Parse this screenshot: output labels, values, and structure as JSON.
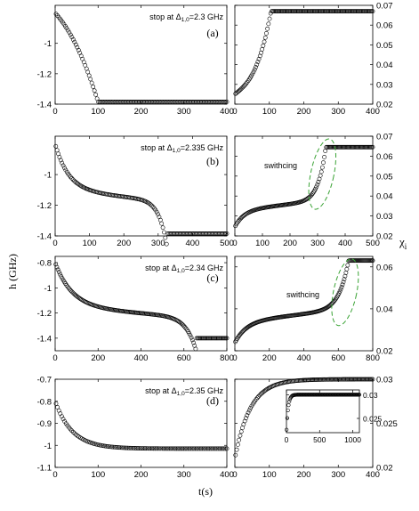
{
  "figure": {
    "ylabel_left": "h (GHz)",
    "ylabel_right_symbol": "χ",
    "ylabel_right_subscript": "i",
    "xlabel": "t(s)"
  },
  "chart_data": [
    {
      "type": "scatter",
      "panel": "a-left",
      "annotation_prefix": "stop at Δ",
      "annotation_sub": "1,0",
      "annotation_suffix": "=2.3 GHz",
      "xlim": [
        0,
        400
      ],
      "ylim": [
        -1.4,
        -0.75
      ],
      "xticks": [
        "0",
        "100",
        "200",
        "300",
        "400"
      ],
      "yticks": [
        "-1",
        "-1.2",
        "-1.4"
      ],
      "series": [
        {
          "kind": "sigmoid",
          "t_start": 2,
          "t_end": 400,
          "n": 130,
          "y0": -0.8,
          "y1": -1.385,
          "t_switch": 100,
          "shape": "drop_concave",
          "noise": 0
        }
      ]
    },
    {
      "type": "scatter",
      "panel": "a-right",
      "label": "(a)",
      "xlim": [
        0,
        400
      ],
      "ylim": [
        0.02,
        0.07
      ],
      "xticks": [
        "0",
        "100",
        "200",
        "300",
        "400"
      ],
      "yticks": [
        "0.02",
        "0.03",
        "0.04",
        "0.05",
        "0.06",
        "0.07"
      ],
      "series": [
        {
          "kind": "rise",
          "t_start": 2,
          "t_end": 400,
          "n": 130,
          "y0": 0.025,
          "y1": 0.067,
          "t_switch": 105
        }
      ]
    },
    {
      "type": "scatter",
      "panel": "b-left",
      "annotation_prefix": "stop at Δ",
      "annotation_sub": "1,0",
      "annotation_suffix": "=2.335 GHz",
      "xlim": [
        0,
        500
      ],
      "ylim": [
        -1.4,
        -0.75
      ],
      "xticks": [
        "0",
        "100",
        "200",
        "300",
        "400",
        "500"
      ],
      "yticks": [
        "-1",
        "-1.2",
        "-1.4"
      ],
      "series": [
        {
          "kind": "plateau_drop",
          "t_start": 2,
          "t_end": 500,
          "n": 140,
          "y0": -0.8,
          "y_mid": -1.1,
          "y1": -1.385,
          "t_switch": 325
        }
      ]
    },
    {
      "type": "scatter",
      "panel": "b-right",
      "label": "(b)",
      "annotation": "swithcing",
      "xlim": [
        0,
        500
      ],
      "ylim": [
        0.02,
        0.07
      ],
      "xticks": [
        "0",
        "100",
        "200",
        "300",
        "400",
        "500"
      ],
      "yticks": [
        "0.02",
        "0.03",
        "0.04",
        "0.05",
        "0.06",
        "0.07"
      ],
      "series": [
        {
          "kind": "rise_switch",
          "t_start": 2,
          "t_end": 500,
          "n": 140,
          "y0": 0.023,
          "y_mid": 0.038,
          "y1": 0.0645,
          "t_switch": 330
        }
      ]
    },
    {
      "type": "scatter",
      "panel": "c-left",
      "annotation_prefix": "stop at Δ",
      "annotation_sub": "1,0",
      "annotation_suffix": "=2.34 GHz",
      "xlim": [
        0,
        800
      ],
      "ylim": [
        -1.5,
        -0.75
      ],
      "xticks": [
        "0",
        "200",
        "400",
        "600",
        "800"
      ],
      "yticks": [
        "-0.8",
        "-1",
        "-1.2",
        "-1.4"
      ],
      "series": [
        {
          "kind": "plateau_drop",
          "t_start": 3,
          "t_end": 800,
          "n": 160,
          "y0": -0.8,
          "y_mid": -1.15,
          "y1": -1.4,
          "t_switch": 655
        }
      ]
    },
    {
      "type": "scatter",
      "panel": "c-right",
      "label": "(c)",
      "annotation": "swithcing",
      "xlim": [
        0,
        800
      ],
      "ylim": [
        0.02,
        0.065
      ],
      "xticks": [
        "0",
        "200",
        "400",
        "600",
        "800"
      ],
      "yticks": [
        "0.02",
        "0.04",
        "0.06"
      ],
      "series": [
        {
          "kind": "rise_switch",
          "t_start": 3,
          "t_end": 800,
          "n": 160,
          "y0": 0.022,
          "y_mid": 0.04,
          "y1": 0.063,
          "t_switch": 660
        }
      ]
    },
    {
      "type": "scatter",
      "panel": "d-left",
      "annotation_prefix": "stop at Δ",
      "annotation_sub": "1,0",
      "annotation_suffix": "=2.35 GHz",
      "xlim": [
        0,
        400
      ],
      "ylim": [
        -1.1,
        -0.7
      ],
      "xticks": [
        "0",
        "100",
        "200",
        "300",
        "400"
      ],
      "yticks": [
        "-0.7",
        "-0.8",
        "-0.9",
        "-1",
        "-1.1"
      ],
      "series": [
        {
          "kind": "exp_decay",
          "t_start": 2,
          "t_end": 400,
          "n": 120,
          "y0": -0.8,
          "y1": -1.015,
          "tau": 40
        }
      ]
    },
    {
      "type": "scatter",
      "panel": "d-right",
      "label": "(d)",
      "xlim": [
        0,
        400
      ],
      "ylim": [
        0.02,
        0.03
      ],
      "xticks": [
        "0",
        "100",
        "200",
        "300",
        "400"
      ],
      "yticks": [
        "0.02",
        "0.025",
        "0.03"
      ],
      "series": [
        {
          "kind": "exp_rise",
          "t_start": 2,
          "t_end": 400,
          "n": 120,
          "y0": 0.021,
          "y1": 0.03,
          "tau": 45
        }
      ],
      "inset": {
        "xlim": [
          0,
          1100
        ],
        "ylim": [
          0.022,
          0.031
        ],
        "xticks": [
          "0",
          "500",
          "1000"
        ],
        "yticks": [
          "0.025",
          "0.03"
        ],
        "series": [
          {
            "kind": "exp_rise",
            "t_start": 2,
            "t_end": 1100,
            "n": 110,
            "y0": 0.022,
            "y1": 0.03,
            "tau": 25
          }
        ]
      }
    }
  ]
}
